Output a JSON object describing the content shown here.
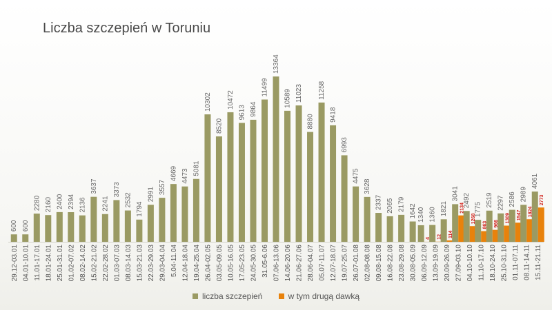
{
  "chart_data": {
    "type": "bar",
    "title": "Liczba szczepień w Toruniu",
    "categories": [
      "29.12-03.01",
      "04.01-10.01",
      "11.01-17.01",
      "18.01-24.01",
      "25.01-31.01",
      "01.02-07.02",
      "08.02-14.02",
      "15.02-21.02",
      "22.02-28.02",
      "01.03-07.03",
      "08.03-14.03",
      "15.03-21.03",
      "22.03-29.03",
      "29.03-04.04",
      "5.04-11.04",
      "12.04-18.04",
      "19.04-25.04",
      "26.04-02.05",
      "03.05-09.05",
      "10.05-16.05",
      "17.05-23.05",
      "24.05-30.05",
      "31.05-6.06",
      "07.06-13.06",
      "14.06-20.06",
      "21.06-27.06",
      "28.06-04.07",
      "05.07-11.07",
      "12.07-18.07",
      "19.07-25.07",
      "26.07-01.08",
      "02.08-08.08",
      "09.08-15.08",
      "16.08-22.08",
      "23.08-29.08",
      "30.08-05.09",
      "06.09-12.09",
      "13.09-19.09",
      "20.09-26.09",
      "27.09-03.10",
      "04.10-10.10",
      "11.10-17.10",
      "18.10-24.10",
      "25.10-31.10",
      "01.11-07.11",
      "08.11-14.11",
      "15.11-21.11"
    ],
    "series": [
      {
        "name": "liczba szczepień",
        "color": "#9a9a63",
        "values": [
          600,
          600,
          2280,
          2160,
          2400,
          2394,
          2136,
          3637,
          2241,
          3373,
          2532,
          1794,
          2991,
          3557,
          4669,
          4473,
          5081,
          10302,
          8520,
          10472,
          9613,
          9864,
          11499,
          13364,
          10589,
          11023,
          8880,
          11258,
          9418,
          6993,
          4475,
          3628,
          2337,
          2065,
          2179,
          1642,
          1340,
          1360,
          1821,
          3041,
          2492,
          1775,
          2519,
          2297,
          2586,
          2989,
          4061
        ]
      },
      {
        "name": "w tym drugą dawką",
        "color": "#e8820c",
        "values": [
          null,
          null,
          null,
          null,
          null,
          null,
          null,
          null,
          null,
          null,
          null,
          null,
          null,
          null,
          null,
          null,
          null,
          null,
          null,
          null,
          null,
          null,
          null,
          null,
          null,
          null,
          null,
          null,
          null,
          null,
          null,
          null,
          null,
          null,
          null,
          null,
          4,
          12,
          114,
          2134,
          1268,
          863,
          966,
          1309,
          1547,
          1824,
          2773
        ]
      }
    ],
    "ylim": [
      0,
      14000
    ],
    "legend_position": "bottom",
    "grid": false
  }
}
